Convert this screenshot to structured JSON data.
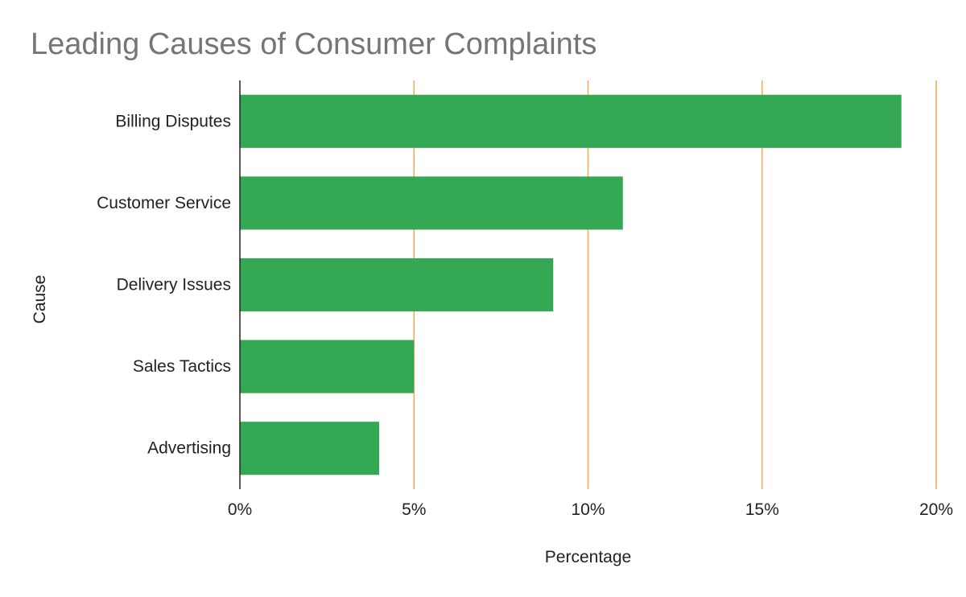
{
  "chart_data": {
    "type": "bar",
    "orientation": "horizontal",
    "title": "Leading Causes of Consumer Complaints",
    "xlabel": "Percentage",
    "ylabel": "Cause",
    "categories": [
      "Billing Disputes",
      "Customer Service",
      "Delivery Issues",
      "Sales Tactics",
      "Advertising"
    ],
    "values": [
      19,
      11,
      9,
      5,
      4
    ],
    "xlim": [
      0,
      20
    ],
    "xticks": [
      0,
      5,
      10,
      15,
      20
    ],
    "tick_labels": [
      "0%",
      "5%",
      "10%",
      "15%",
      "20%"
    ],
    "grid": true,
    "legend": "none",
    "colors": {
      "bar": "#34a853",
      "gridline": "#f4a85a",
      "axis": "#222222",
      "title": "#757575"
    }
  }
}
